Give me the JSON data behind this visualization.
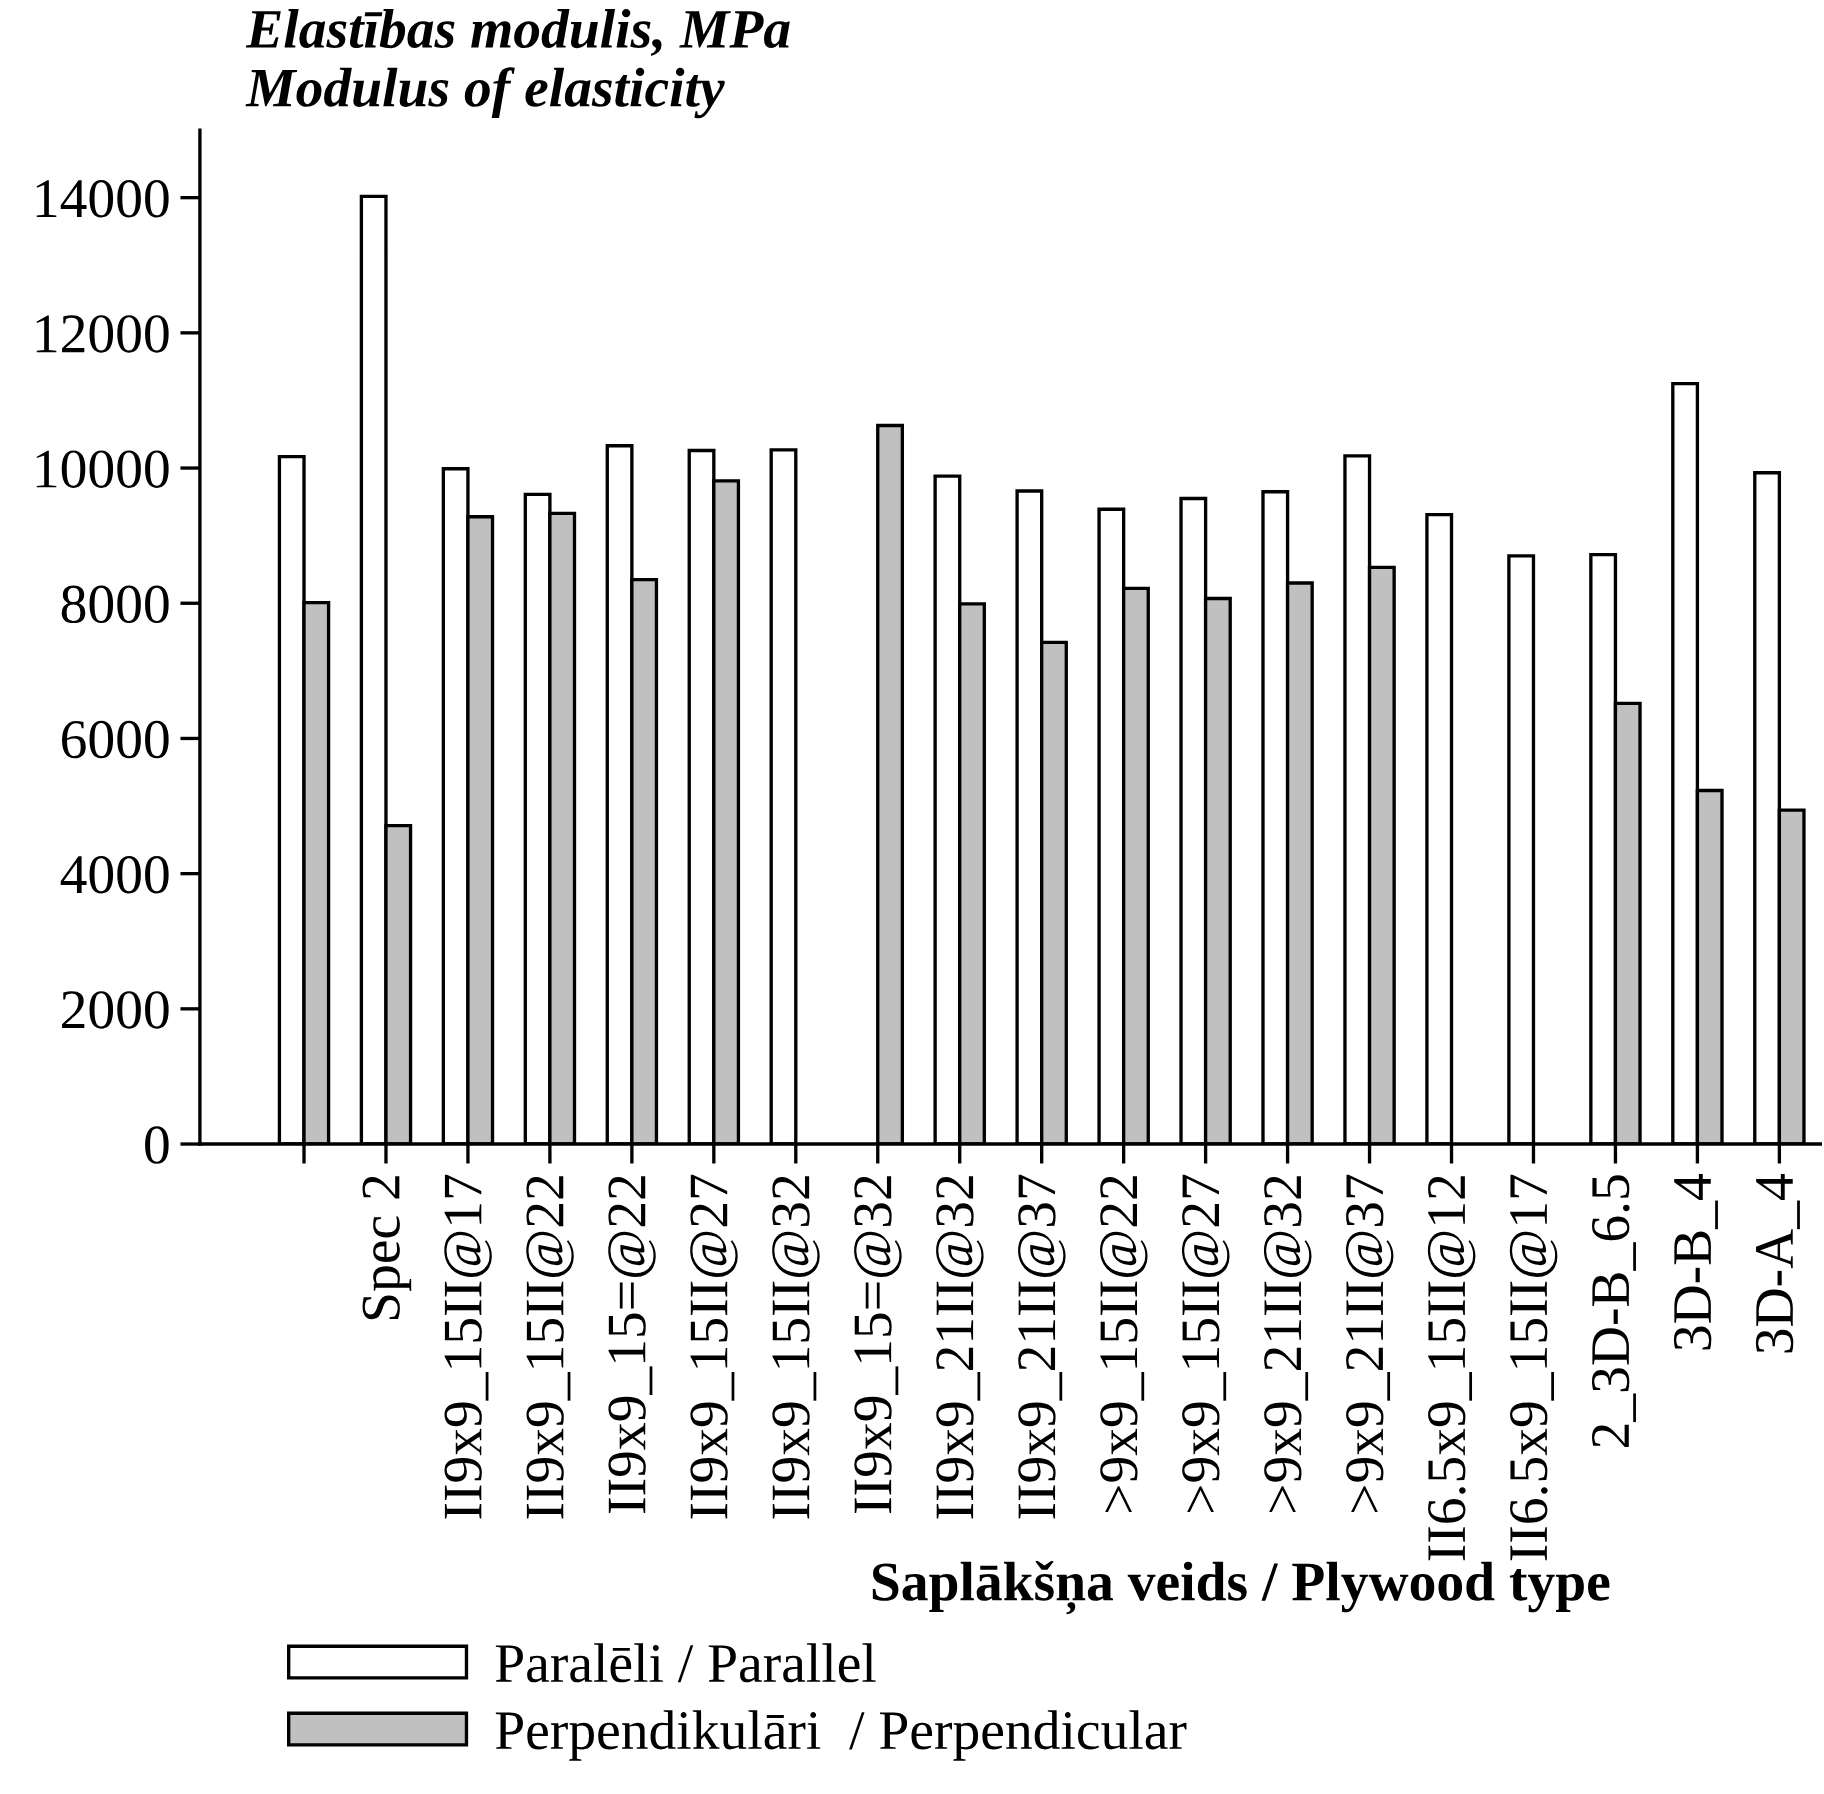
{
  "chart_data": {
    "type": "bar",
    "title": "Elastības modulis, MPa\nModulus of elasticity",
    "xlabel": "Saplākšņa veids / Plywood type",
    "categories": [
      null,
      "Spec 2",
      "II9x9_15II@17",
      "II9x9_15II@22",
      "II9x9_15=@22",
      "II9x9_15II@27",
      "II9x9_15II@32",
      "II9x9_15=@32",
      "II9x9_21II@32",
      "II9x9_21II@37",
      ">9x9_15II@22",
      ">9x9_15II@27",
      ">9x9_21II@32",
      ">9x9_21II@37",
      "II6.5x9_15II@12",
      "II6.5x9_15II@17",
      "2_3D-B_6.5",
      "3D-B_4",
      "3D-A_4"
    ],
    "series": [
      {
        "name": "Paralēli / Parallel",
        "color": "#ffffff",
        "values": [
          10170,
          14020,
          9990,
          9610,
          10330,
          10260,
          10270,
          null,
          9880,
          9660,
          9390,
          9550,
          9650,
          10180,
          9310,
          8700,
          8720,
          11250,
          9930
        ]
      },
      {
        "name": "Perpendikulāri  / Perpendicular",
        "color": "#c0c0c0",
        "values": [
          8010,
          4710,
          9280,
          9330,
          8350,
          9810,
          null,
          10630,
          7990,
          7420,
          8220,
          8070,
          8300,
          8530,
          null,
          null,
          6520,
          5230,
          4940
        ]
      }
    ],
    "ylim": [
      0,
      15000
    ],
    "yticks": [
      0,
      2000,
      4000,
      6000,
      8000,
      10000,
      12000,
      14000
    ],
    "grid": false,
    "legend": "bottom left"
  }
}
